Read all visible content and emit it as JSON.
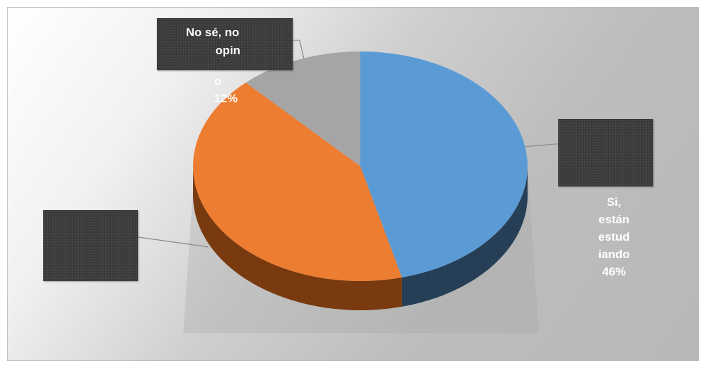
{
  "chart_data": {
    "type": "pie",
    "style": "3d",
    "title": "",
    "legend": "none",
    "slices": [
      {
        "label_lines": [
          "Si,",
          "están",
          "estud",
          "iando"
        ],
        "value": 46,
        "value_text": "46%",
        "color": "#5b9bd5",
        "side_color": "#263f57"
      },
      {
        "label_lines": [],
        "value": 42,
        "value_text": "",
        "color": "#ed7d31",
        "side_color": "#7a3a10"
      },
      {
        "label_lines": [
          "No sé, no",
          "opin",
          "o"
        ],
        "value": 12,
        "value_text": "12%",
        "color": "#a5a5a5",
        "side_color": "#5c5c5c"
      }
    ]
  }
}
